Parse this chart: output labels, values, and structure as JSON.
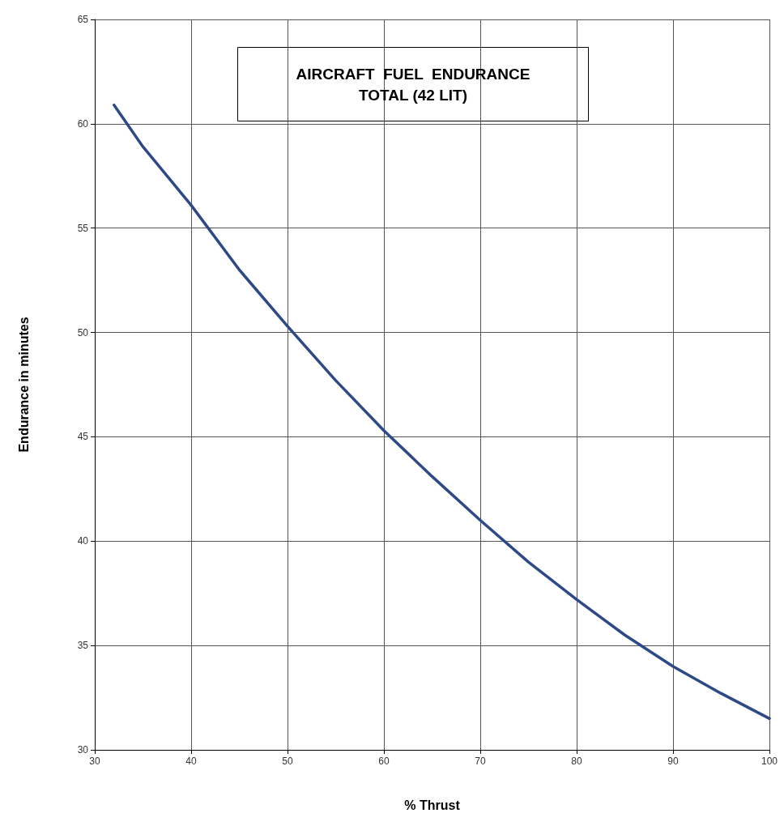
{
  "chart_data": {
    "type": "line",
    "title": "AIRCRAFT  FUEL  ENDURANCE\nTOTAL (42 LIT)",
    "xlabel": "% Thrust",
    "ylabel": "Endurance in minutes",
    "x": [
      32,
      35,
      40,
      45,
      50,
      55,
      60,
      65,
      70,
      75,
      80,
      85,
      90,
      95,
      100
    ],
    "series": [
      {
        "color": "#2e4a86",
        "values": [
          60.9,
          58.9,
          56.1,
          53.0,
          50.3,
          47.7,
          45.3,
          43.1,
          41.0,
          39.0,
          37.2,
          35.5,
          34.0,
          32.7,
          31.5
        ]
      }
    ],
    "xlim": [
      30,
      100
    ],
    "xticks": [
      30,
      40,
      50,
      60,
      70,
      80,
      90,
      100
    ],
    "ylim": [
      30,
      65
    ],
    "yticks": [
      30,
      35,
      40,
      45,
      50,
      55,
      60,
      65
    ],
    "grid": true,
    "marker": "none",
    "line_style": "solid"
  }
}
